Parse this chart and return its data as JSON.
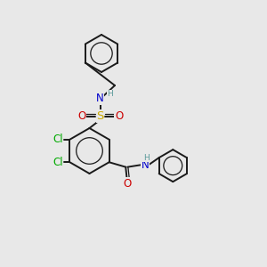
{
  "bg_color": "#e8e8e8",
  "bond_color": "#1a1a1a",
  "bond_width": 1.4,
  "atom_colors": {
    "C": "#1a1a1a",
    "H": "#5a9a9a",
    "N": "#0000cc",
    "O": "#cc0000",
    "S": "#ccaa00",
    "Cl": "#00aa00"
  },
  "fs": 8.5,
  "fss": 6.5,
  "xlim": [
    0,
    10
  ],
  "ylim": [
    0,
    10
  ]
}
